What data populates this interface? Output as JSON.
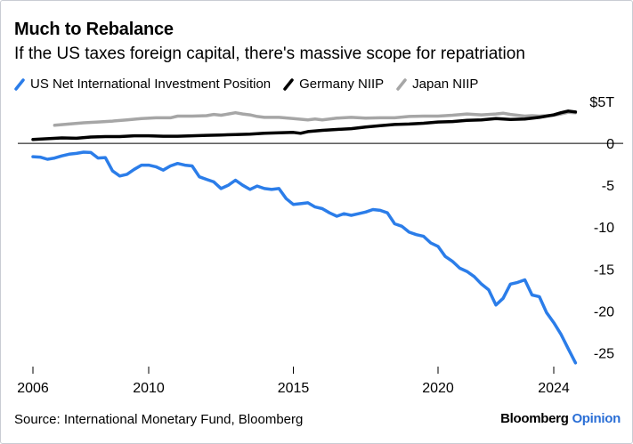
{
  "header": {
    "title": "Much to Rebalance",
    "subtitle": "If the US taxes foreign capital, there's massive scope for repatriation"
  },
  "footer": {
    "source": "Source: International Monetary Fund, Bloomberg",
    "brand_main": "Bloomberg",
    "brand_accent": "Opinion"
  },
  "colors": {
    "us": "#2b7de9",
    "germany": "#000000",
    "japan": "#a6a6a6",
    "brand_accent": "#2b6fd6"
  },
  "chart_data": {
    "type": "line",
    "title": "Much to Rebalance",
    "subtitle": "If the US taxes foreign capital, there's massive scope for repatriation",
    "xlabel": "",
    "ylabel": "",
    "x_ticks": [
      "2006",
      "2010",
      "2015",
      "2020",
      "2024"
    ],
    "y_ticks": [
      {
        "value": 5,
        "label": "$5T"
      },
      {
        "value": 0,
        "label": "0"
      },
      {
        "value": -5,
        "label": "-5"
      },
      {
        "value": -10,
        "label": "-10"
      },
      {
        "value": -15,
        "label": "-15"
      },
      {
        "value": -20,
        "label": "-20"
      },
      {
        "value": -25,
        "label": "-25"
      }
    ],
    "xlim": [
      2006,
      2024
    ],
    "ylim": [
      -27.5,
      5
    ],
    "grid": false,
    "legend_position": "top-left",
    "series": [
      {
        "name": "US Net International Investment Position",
        "color": "#2b7de9",
        "points": [
          [
            2006.0,
            -1.6
          ],
          [
            2006.25,
            -1.65
          ],
          [
            2006.5,
            -1.9
          ],
          [
            2006.75,
            -1.75
          ],
          [
            2007.0,
            -1.5
          ],
          [
            2007.25,
            -1.3
          ],
          [
            2007.5,
            -1.2
          ],
          [
            2007.75,
            -1.05
          ],
          [
            2008.0,
            -1.1
          ],
          [
            2008.25,
            -1.75
          ],
          [
            2008.5,
            -1.7
          ],
          [
            2008.75,
            -3.3
          ],
          [
            2009.0,
            -3.9
          ],
          [
            2009.25,
            -3.7
          ],
          [
            2009.5,
            -3.1
          ],
          [
            2009.75,
            -2.6
          ],
          [
            2010.0,
            -2.6
          ],
          [
            2010.25,
            -2.8
          ],
          [
            2010.5,
            -3.2
          ],
          [
            2010.75,
            -2.7
          ],
          [
            2011.0,
            -2.4
          ],
          [
            2011.25,
            -2.6
          ],
          [
            2011.5,
            -2.7
          ],
          [
            2011.75,
            -4.0
          ],
          [
            2012.0,
            -4.3
          ],
          [
            2012.25,
            -4.6
          ],
          [
            2012.5,
            -5.4
          ],
          [
            2012.75,
            -5.0
          ],
          [
            2013.0,
            -4.4
          ],
          [
            2013.25,
            -5.0
          ],
          [
            2013.5,
            -5.5
          ],
          [
            2013.75,
            -5.1
          ],
          [
            2014.0,
            -5.4
          ],
          [
            2014.25,
            -5.5
          ],
          [
            2014.5,
            -5.4
          ],
          [
            2014.75,
            -6.6
          ],
          [
            2015.0,
            -7.3
          ],
          [
            2015.25,
            -7.2
          ],
          [
            2015.5,
            -7.1
          ],
          [
            2015.75,
            -7.6
          ],
          [
            2016.0,
            -7.8
          ],
          [
            2016.25,
            -8.3
          ],
          [
            2016.5,
            -8.7
          ],
          [
            2016.75,
            -8.4
          ],
          [
            2017.0,
            -8.6
          ],
          [
            2017.25,
            -8.4
          ],
          [
            2017.5,
            -8.2
          ],
          [
            2017.75,
            -7.9
          ],
          [
            2018.0,
            -8.0
          ],
          [
            2018.25,
            -8.3
          ],
          [
            2018.5,
            -9.6
          ],
          [
            2018.75,
            -9.9
          ],
          [
            2019.0,
            -10.6
          ],
          [
            2019.25,
            -10.9
          ],
          [
            2019.5,
            -11.1
          ],
          [
            2019.75,
            -11.9
          ],
          [
            2020.0,
            -12.3
          ],
          [
            2020.25,
            -13.5
          ],
          [
            2020.5,
            -14.1
          ],
          [
            2020.75,
            -14.9
          ],
          [
            2021.0,
            -15.3
          ],
          [
            2021.25,
            -15.9
          ],
          [
            2021.5,
            -16.8
          ],
          [
            2021.75,
            -17.5
          ],
          [
            2022.0,
            -19.3
          ],
          [
            2022.25,
            -18.5
          ],
          [
            2022.5,
            -16.8
          ],
          [
            2022.75,
            -16.6
          ],
          [
            2023.0,
            -16.3
          ],
          [
            2023.25,
            -18.1
          ],
          [
            2023.5,
            -18.3
          ],
          [
            2023.75,
            -20.2
          ],
          [
            2024.0,
            -21.4
          ],
          [
            2024.25,
            -22.8
          ],
          [
            2024.5,
            -24.5
          ],
          [
            2024.75,
            -26.2
          ]
        ]
      },
      {
        "name": "Germany NIIP",
        "color": "#000000",
        "points": [
          [
            2006.0,
            0.45
          ],
          [
            2006.5,
            0.55
          ],
          [
            2007.0,
            0.65
          ],
          [
            2007.5,
            0.6
          ],
          [
            2008.0,
            0.75
          ],
          [
            2008.5,
            0.8
          ],
          [
            2009.0,
            0.8
          ],
          [
            2009.5,
            0.9
          ],
          [
            2010.0,
            0.9
          ],
          [
            2010.5,
            0.85
          ],
          [
            2011.0,
            0.85
          ],
          [
            2011.5,
            0.9
          ],
          [
            2012.0,
            0.95
          ],
          [
            2012.5,
            1.0
          ],
          [
            2013.0,
            1.05
          ],
          [
            2013.5,
            1.1
          ],
          [
            2014.0,
            1.2
          ],
          [
            2014.5,
            1.25
          ],
          [
            2015.0,
            1.3
          ],
          [
            2015.25,
            1.2
          ],
          [
            2015.5,
            1.4
          ],
          [
            2016.0,
            1.55
          ],
          [
            2016.5,
            1.65
          ],
          [
            2017.0,
            1.75
          ],
          [
            2017.5,
            1.95
          ],
          [
            2018.0,
            2.1
          ],
          [
            2018.5,
            2.25
          ],
          [
            2019.0,
            2.3
          ],
          [
            2019.5,
            2.4
          ],
          [
            2020.0,
            2.55
          ],
          [
            2020.5,
            2.6
          ],
          [
            2021.0,
            2.75
          ],
          [
            2021.5,
            2.8
          ],
          [
            2022.0,
            2.95
          ],
          [
            2022.5,
            2.85
          ],
          [
            2023.0,
            2.9
          ],
          [
            2023.5,
            3.1
          ],
          [
            2024.0,
            3.4
          ],
          [
            2024.25,
            3.65
          ],
          [
            2024.5,
            3.85
          ],
          [
            2024.75,
            3.75
          ]
        ]
      },
      {
        "name": "Japan NIIP",
        "color": "#a6a6a6",
        "points": [
          [
            2006.75,
            2.15
          ],
          [
            2007.25,
            2.3
          ],
          [
            2007.75,
            2.45
          ],
          [
            2008.25,
            2.55
          ],
          [
            2008.75,
            2.65
          ],
          [
            2009.25,
            2.8
          ],
          [
            2009.75,
            2.95
          ],
          [
            2010.25,
            3.05
          ],
          [
            2010.75,
            3.05
          ],
          [
            2011.0,
            3.25
          ],
          [
            2011.5,
            3.25
          ],
          [
            2012.0,
            3.3
          ],
          [
            2012.25,
            3.45
          ],
          [
            2012.5,
            3.35
          ],
          [
            2012.75,
            3.5
          ],
          [
            2013.0,
            3.65
          ],
          [
            2013.25,
            3.5
          ],
          [
            2013.5,
            3.4
          ],
          [
            2013.75,
            3.2
          ],
          [
            2014.0,
            3.1
          ],
          [
            2014.5,
            3.1
          ],
          [
            2015.0,
            2.95
          ],
          [
            2015.5,
            2.8
          ],
          [
            2015.75,
            2.9
          ],
          [
            2016.0,
            2.8
          ],
          [
            2016.5,
            3.0
          ],
          [
            2017.0,
            3.1
          ],
          [
            2017.5,
            3.0
          ],
          [
            2018.0,
            3.05
          ],
          [
            2018.5,
            3.05
          ],
          [
            2019.0,
            3.2
          ],
          [
            2019.5,
            3.25
          ],
          [
            2020.0,
            3.25
          ],
          [
            2020.5,
            3.35
          ],
          [
            2021.0,
            3.5
          ],
          [
            2021.5,
            3.4
          ],
          [
            2022.0,
            3.5
          ],
          [
            2022.25,
            3.6
          ],
          [
            2022.5,
            3.45
          ],
          [
            2023.0,
            3.25
          ],
          [
            2023.25,
            3.3
          ],
          [
            2023.5,
            3.25
          ],
          [
            2024.0,
            3.35
          ],
          [
            2024.25,
            3.5
          ],
          [
            2024.5,
            3.7
          ],
          [
            2024.75,
            3.65
          ]
        ]
      }
    ]
  }
}
